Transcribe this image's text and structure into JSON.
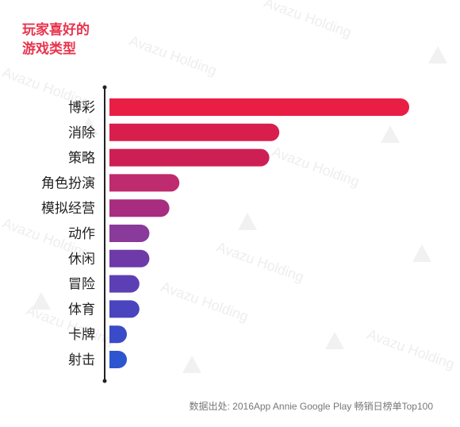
{
  "chart_data": {
    "type": "bar",
    "orientation": "horizontal",
    "title_lines": [
      "玩家喜好的",
      "游戏类型"
    ],
    "categories": [
      "博彩",
      "消除",
      "策略",
      "角色扮演",
      "模拟经营",
      "动作",
      "休闲",
      "冒险",
      "体育",
      "卡牌",
      "射击"
    ],
    "values": [
      30,
      17,
      16,
      7,
      6,
      4,
      4,
      3,
      3,
      1,
      1
    ],
    "bar_colors": [
      "#e91e44",
      "#d81e4d",
      "#ce1f55",
      "#be2b6e",
      "#a82d80",
      "#8a3a9a",
      "#6e3aa8",
      "#5c3fb4",
      "#4a44be",
      "#3a4bc8",
      "#2e55d0"
    ],
    "xlim": [
      0,
      30
    ],
    "grid": false,
    "source": "数据出处: 2016App Annie Google Play 畅销日榜单Top100"
  },
  "watermark": "Avazu Holding"
}
